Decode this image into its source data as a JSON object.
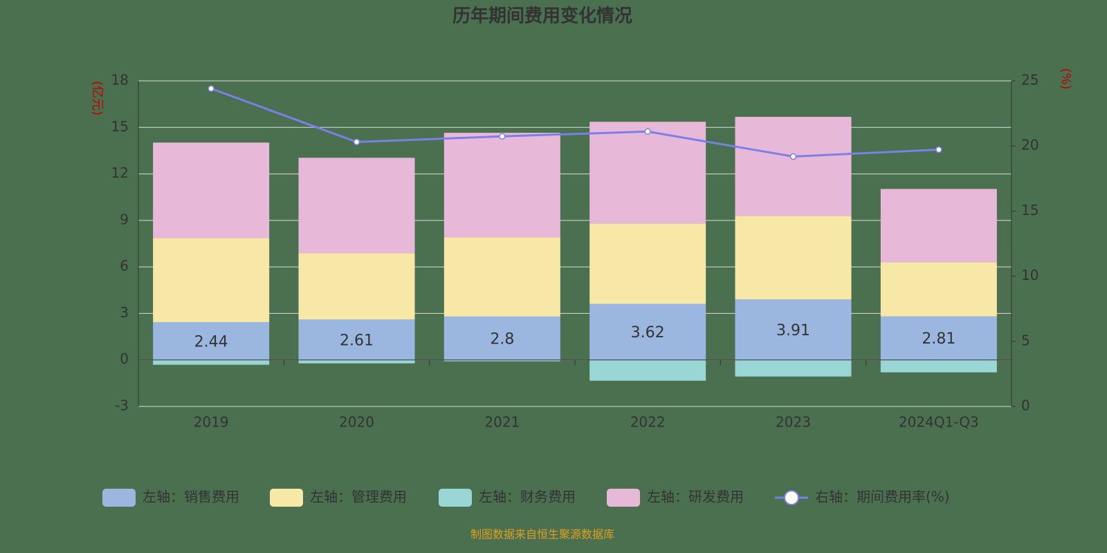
{
  "chart_data": {
    "type": "bar",
    "title": "历年期间费用变化情况",
    "y_label": "(亿元)",
    "y2_label": "(%)",
    "categories": [
      "2019",
      "2020",
      "2021",
      "2022",
      "2023",
      "2024Q1-Q3"
    ],
    "series": [
      {
        "name": "左轴：销售费用",
        "color": "#9bb7e0",
        "values": [
          2.44,
          2.61,
          2.8,
          3.62,
          3.91,
          2.81
        ]
      },
      {
        "name": "左轴：管理费用",
        "color": "#f8e8a8",
        "values": [
          5.42,
          4.27,
          5.1,
          5.18,
          5.38,
          3.49
        ]
      },
      {
        "name": "左轴：财务费用",
        "color": "#9ad6d6",
        "values": [
          -0.31,
          -0.22,
          -0.09,
          -1.34,
          -1.07,
          -0.8
        ]
      },
      {
        "name": "左轴：研发费用",
        "color": "#e8b8d8",
        "values": [
          6.16,
          6.16,
          6.75,
          6.56,
          6.39,
          4.73
        ]
      },
      {
        "name": "右轴：期间费用率(%)",
        "color": "#7b7fe8",
        "type": "line",
        "axis": "y2",
        "values": [
          24.41,
          20.31,
          20.74,
          21.11,
          19.19,
          19.72
        ]
      }
    ],
    "ylim": [
      -3,
      18
    ],
    "yticks": [
      -3,
      0,
      3,
      6,
      9,
      12,
      15,
      18
    ],
    "y2lim": [
      0,
      25
    ],
    "y2ticks": [
      0,
      5,
      10,
      15,
      20,
      25
    ],
    "grid": true,
    "source": "制图数据来自恒生聚源数据库"
  }
}
